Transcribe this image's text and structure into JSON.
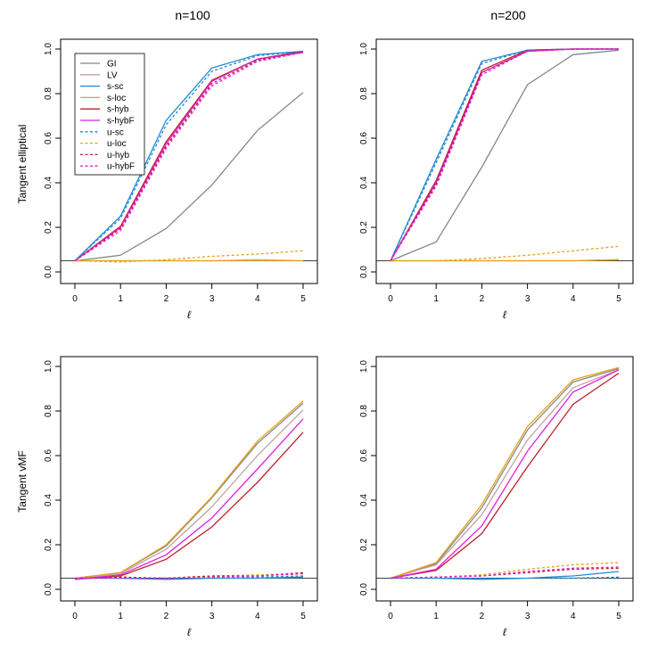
{
  "figure": {
    "col_titles": [
      "n=100",
      "n=200"
    ],
    "row_labels": [
      "Tangent elliptical",
      "Tangent vMF"
    ],
    "xlabel": "ℓ"
  },
  "legend": {
    "placement": "top-left",
    "entries": [
      {
        "label": "GI",
        "color": "#888888",
        "dash": "solid"
      },
      {
        "label": "LV",
        "color": "#c2a2a2",
        "dash": "solid"
      },
      {
        "label": "s-sc",
        "color": "#1f8ad6",
        "dash": "solid"
      },
      {
        "label": "s-loc",
        "color": "#e5a21a",
        "dash": "solid"
      },
      {
        "label": "s-hyb",
        "color": "#c0202a",
        "dash": "solid"
      },
      {
        "label": "s-hybF",
        "color": "#e020e0",
        "dash": "solid"
      },
      {
        "label": "u-sc",
        "color": "#1f8ad6",
        "dash": "dashed"
      },
      {
        "label": "u-loc",
        "color": "#e5a21a",
        "dash": "dashed"
      },
      {
        "label": "u-hyb",
        "color": "#c0202a",
        "dash": "dashed"
      },
      {
        "label": "u-hybF",
        "color": "#e020e0",
        "dash": "dashed"
      }
    ]
  },
  "chart_data": [
    {
      "type": "line",
      "title": "n=100",
      "ylabel": "Tangent elliptical",
      "xlabel": "ℓ",
      "x": [
        0,
        1,
        2,
        3,
        4,
        5
      ],
      "xlim": [
        0,
        5
      ],
      "ylim": [
        0,
        1
      ],
      "xticks": [
        "0",
        "1",
        "2",
        "3",
        "4",
        "5"
      ],
      "yticks": [
        "0.0",
        "0.2",
        "0.4",
        "0.6",
        "0.8",
        "1.0"
      ],
      "reference_line": 0.05,
      "series": [
        {
          "name": "GI",
          "values": [
            0.05,
            0.075,
            0.195,
            0.39,
            0.635,
            0.805
          ]
        },
        {
          "name": "LV",
          "values": [
            0.05,
            0.05,
            0.05,
            0.05,
            0.055,
            0.05
          ]
        },
        {
          "name": "s-sc",
          "values": [
            0.05,
            0.25,
            0.68,
            0.915,
            0.975,
            0.99
          ]
        },
        {
          "name": "s-loc",
          "values": [
            0.05,
            0.05,
            0.05,
            0.05,
            0.05,
            0.05
          ]
        },
        {
          "name": "s-hyb",
          "values": [
            0.05,
            0.205,
            0.585,
            0.86,
            0.955,
            0.99
          ]
        },
        {
          "name": "s-hybF",
          "values": [
            0.05,
            0.2,
            0.575,
            0.855,
            0.955,
            0.985
          ]
        },
        {
          "name": "u-sc",
          "values": [
            0.05,
            0.24,
            0.66,
            0.9,
            0.97,
            0.99
          ]
        },
        {
          "name": "u-loc",
          "values": [
            0.05,
            0.045,
            0.055,
            0.07,
            0.08,
            0.095
          ]
        },
        {
          "name": "u-hyb",
          "values": [
            0.05,
            0.195,
            0.565,
            0.845,
            0.95,
            0.985
          ]
        },
        {
          "name": "u-hybF",
          "values": [
            0.05,
            0.185,
            0.555,
            0.835,
            0.945,
            0.985
          ]
        }
      ]
    },
    {
      "type": "line",
      "title": "n=200",
      "ylabel": "",
      "xlabel": "ℓ",
      "x": [
        0,
        1,
        2,
        3,
        4,
        5
      ],
      "xlim": [
        0,
        5
      ],
      "ylim": [
        0,
        1
      ],
      "xticks": [
        "0",
        "1",
        "2",
        "3",
        "4",
        "5"
      ],
      "yticks": [
        "0.0",
        "0.2",
        "0.4",
        "0.6",
        "0.8",
        "1.0"
      ],
      "reference_line": 0.05,
      "series": [
        {
          "name": "GI",
          "values": [
            0.05,
            0.135,
            0.47,
            0.84,
            0.975,
            0.995
          ]
        },
        {
          "name": "LV",
          "values": [
            0.05,
            0.05,
            0.05,
            0.05,
            0.05,
            0.055
          ]
        },
        {
          "name": "s-sc",
          "values": [
            0.05,
            0.505,
            0.945,
            0.995,
            1.0,
            1.0
          ]
        },
        {
          "name": "s-loc",
          "values": [
            0.05,
            0.05,
            0.05,
            0.05,
            0.05,
            0.055
          ]
        },
        {
          "name": "s-hyb",
          "values": [
            0.05,
            0.41,
            0.905,
            0.995,
            1.0,
            1.0
          ]
        },
        {
          "name": "s-hybF",
          "values": [
            0.05,
            0.4,
            0.895,
            0.99,
            1.0,
            1.0
          ]
        },
        {
          "name": "u-sc",
          "values": [
            0.05,
            0.49,
            0.935,
            0.995,
            1.0,
            1.0
          ]
        },
        {
          "name": "u-loc",
          "values": [
            0.05,
            0.05,
            0.06,
            0.075,
            0.095,
            0.115
          ]
        },
        {
          "name": "u-hyb",
          "values": [
            0.05,
            0.395,
            0.895,
            0.99,
            1.0,
            1.0
          ]
        },
        {
          "name": "u-hybF",
          "values": [
            0.05,
            0.385,
            0.885,
            0.99,
            1.0,
            1.0
          ]
        }
      ]
    },
    {
      "type": "line",
      "title": "",
      "ylabel": "Tangent vMF",
      "xlabel": "ℓ",
      "x": [
        0,
        1,
        2,
        3,
        4,
        5
      ],
      "xlim": [
        0,
        5
      ],
      "ylim": [
        0,
        1
      ],
      "xticks": [
        "0",
        "1",
        "2",
        "3",
        "4",
        "5"
      ],
      "yticks": [
        "0.0",
        "0.2",
        "0.4",
        "0.6",
        "0.8",
        "1.0"
      ],
      "reference_line": 0.05,
      "series": [
        {
          "name": "GI",
          "values": [
            0.05,
            0.075,
            0.195,
            0.41,
            0.655,
            0.835
          ]
        },
        {
          "name": "LV",
          "values": [
            0.05,
            0.07,
            0.18,
            0.37,
            0.6,
            0.805
          ]
        },
        {
          "name": "s-sc",
          "values": [
            0.05,
            0.05,
            0.045,
            0.05,
            0.05,
            0.055
          ]
        },
        {
          "name": "s-loc",
          "values": [
            0.05,
            0.075,
            0.2,
            0.415,
            0.665,
            0.845
          ]
        },
        {
          "name": "s-hyb",
          "values": [
            0.045,
            0.06,
            0.135,
            0.28,
            0.48,
            0.705
          ]
        },
        {
          "name": "s-hybF",
          "values": [
            0.045,
            0.065,
            0.155,
            0.32,
            0.54,
            0.765
          ]
        },
        {
          "name": "u-sc",
          "values": [
            0.05,
            0.05,
            0.05,
            0.05,
            0.055,
            0.06
          ]
        },
        {
          "name": "u-loc",
          "values": [
            0.05,
            0.055,
            0.05,
            0.06,
            0.065,
            0.07
          ]
        },
        {
          "name": "u-hyb",
          "values": [
            0.05,
            0.055,
            0.05,
            0.06,
            0.06,
            0.075
          ]
        },
        {
          "name": "u-hybF",
          "values": [
            0.05,
            0.05,
            0.05,
            0.055,
            0.06,
            0.07
          ]
        }
      ]
    },
    {
      "type": "line",
      "title": "",
      "ylabel": "",
      "xlabel": "ℓ",
      "x": [
        0,
        1,
        2,
        3,
        4,
        5
      ],
      "xlim": [
        0,
        5
      ],
      "ylim": [
        0,
        1
      ],
      "xticks": [
        "0",
        "1",
        "2",
        "3",
        "4",
        "5"
      ],
      "yticks": [
        "0.0",
        "0.2",
        "0.4",
        "0.6",
        "0.8",
        "1.0"
      ],
      "reference_line": 0.05,
      "series": [
        {
          "name": "GI",
          "values": [
            0.05,
            0.115,
            0.365,
            0.715,
            0.93,
            0.99
          ]
        },
        {
          "name": "LV",
          "values": [
            0.05,
            0.11,
            0.335,
            0.67,
            0.905,
            0.985
          ]
        },
        {
          "name": "s-sc",
          "values": [
            0.05,
            0.05,
            0.045,
            0.05,
            0.06,
            0.08
          ]
        },
        {
          "name": "s-loc",
          "values": [
            0.05,
            0.12,
            0.38,
            0.73,
            0.94,
            0.995
          ]
        },
        {
          "name": "s-hyb",
          "values": [
            0.05,
            0.085,
            0.25,
            0.55,
            0.83,
            0.97
          ]
        },
        {
          "name": "s-hybF",
          "values": [
            0.05,
            0.09,
            0.285,
            0.62,
            0.885,
            0.985
          ]
        },
        {
          "name": "u-sc",
          "values": [
            0.05,
            0.05,
            0.05,
            0.05,
            0.05,
            0.055
          ]
        },
        {
          "name": "u-loc",
          "values": [
            0.05,
            0.055,
            0.065,
            0.09,
            0.11,
            0.12
          ]
        },
        {
          "name": "u-hyb",
          "values": [
            0.05,
            0.055,
            0.06,
            0.075,
            0.09,
            0.095
          ]
        },
        {
          "name": "u-hybF",
          "values": [
            0.05,
            0.055,
            0.06,
            0.08,
            0.095,
            0.1
          ]
        }
      ]
    }
  ]
}
